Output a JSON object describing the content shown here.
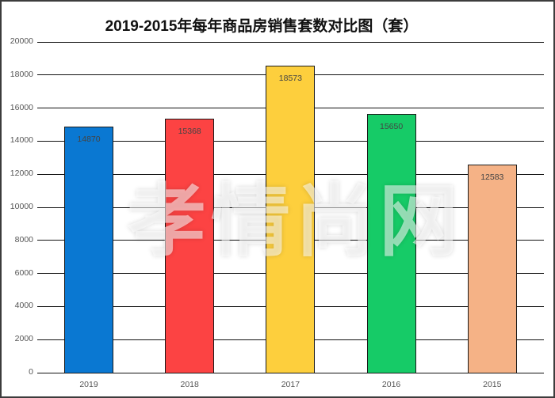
{
  "chart_data": {
    "type": "bar",
    "title": "2019-2015年每年商品房销售套数对比图（套）",
    "xlabel": "",
    "ylabel": "",
    "categories": [
      "2019",
      "2018",
      "2017",
      "2016",
      "2015"
    ],
    "values": [
      14870,
      15368,
      18573,
      15650,
      12583
    ],
    "data_labels": [
      "14870",
      "15368",
      "18573",
      "15650",
      "12583"
    ],
    "bar_colors": [
      "#0a78d2",
      "#fc4343",
      "#fdcf3d",
      "#16cb67",
      "#f5b286"
    ],
    "ylim": [
      0,
      20000
    ],
    "yticks": [
      "0",
      "2000",
      "4000",
      "6000",
      "8000",
      "10000",
      "12000",
      "14000",
      "16000",
      "18000",
      "20000"
    ],
    "grid": true,
    "legend": null
  },
  "watermark": "孝情尚网"
}
